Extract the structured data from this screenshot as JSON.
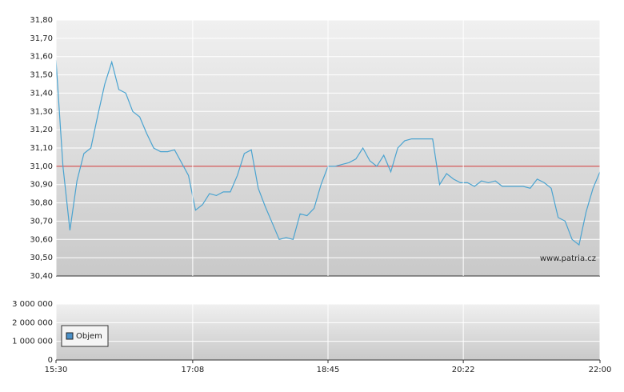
{
  "chart_data": [
    {
      "type": "line",
      "x": [
        "15:30",
        "15:35",
        "15:40",
        "15:45",
        "15:50",
        "15:55",
        "16:00",
        "16:05",
        "16:10",
        "16:15",
        "16:20",
        "16:25",
        "16:30",
        "16:35",
        "16:40",
        "16:45",
        "16:50",
        "16:55",
        "17:00",
        "17:05",
        "17:10",
        "17:15",
        "17:20",
        "17:25",
        "17:30",
        "17:35",
        "17:40",
        "17:45",
        "17:50",
        "17:55",
        "18:00",
        "18:05",
        "18:10",
        "18:15",
        "18:20",
        "18:25",
        "18:30",
        "18:35",
        "18:40",
        "18:45",
        "18:50",
        "18:55",
        "19:00",
        "19:05",
        "19:10",
        "19:15",
        "19:20",
        "19:25",
        "19:30",
        "19:35",
        "19:40",
        "19:45",
        "19:50",
        "19:55",
        "20:00",
        "20:05",
        "20:10",
        "20:15",
        "20:20",
        "20:25",
        "20:30",
        "20:35",
        "20:40",
        "20:45",
        "20:50",
        "20:55",
        "21:00",
        "21:05",
        "21:10",
        "21:15",
        "21:20",
        "21:25",
        "21:30",
        "21:35",
        "21:40",
        "21:45",
        "21:50",
        "21:55",
        "22:00"
      ],
      "series": [
        {
          "color": "#4aa3d0",
          "values": [
            31.58,
            31.0,
            30.65,
            30.92,
            31.07,
            31.1,
            31.28,
            31.45,
            31.57,
            31.42,
            31.4,
            31.3,
            31.27,
            31.18,
            31.1,
            31.08,
            31.08,
            31.09,
            31.02,
            30.95,
            30.76,
            30.79,
            30.85,
            30.84,
            30.86,
            30.86,
            30.95,
            31.07,
            31.09,
            30.88,
            30.78,
            30.69,
            30.6,
            30.61,
            30.6,
            30.74,
            30.73,
            30.77,
            30.9,
            31.0,
            31.0,
            31.01,
            31.02,
            31.04,
            31.1,
            31.03,
            31.0,
            31.06,
            30.97,
            31.1,
            31.14,
            31.15,
            31.15,
            31.15,
            31.15,
            30.9,
            30.96,
            30.93,
            30.91,
            30.91,
            30.89,
            30.92,
            30.91,
            30.92,
            30.89,
            30.89,
            30.89,
            30.89,
            30.88,
            30.93,
            30.91,
            30.88,
            30.72,
            30.7,
            30.6,
            30.57,
            30.75,
            30.88,
            30.97
          ]
        }
      ],
      "reference": 31.0,
      "reference_color": "#cc3333",
      "xlim": [
        "15:30",
        "22:00"
      ],
      "ylim": [
        30.4,
        31.8
      ],
      "yticks": [
        {
          "value": 30.4,
          "label": "30,40"
        },
        {
          "value": 30.5,
          "label": "30,50"
        },
        {
          "value": 30.6,
          "label": "30,60"
        },
        {
          "value": 30.7,
          "label": "30,70"
        },
        {
          "value": 30.8,
          "label": "30,80"
        },
        {
          "value": 30.9,
          "label": "30,90"
        },
        {
          "value": 31.0,
          "label": "31,00"
        },
        {
          "value": 31.1,
          "label": "31,10"
        },
        {
          "value": 31.2,
          "label": "31,20"
        },
        {
          "value": 31.3,
          "label": "31,30"
        },
        {
          "value": 31.4,
          "label": "31,40"
        },
        {
          "value": 31.5,
          "label": "31,50"
        },
        {
          "value": 31.6,
          "label": "31,60"
        },
        {
          "value": 31.7,
          "label": "31,70"
        },
        {
          "value": 31.8,
          "label": "31,80"
        }
      ],
      "grid": true,
      "annotation": "www.patria.cz"
    },
    {
      "type": "bar",
      "x": [],
      "series": [
        {
          "name": "Objem",
          "color": "#4a90c8",
          "values": []
        }
      ],
      "xlim": [
        "15:30",
        "22:00"
      ],
      "xticks": [
        "15:30",
        "17:08",
        "18:45",
        "20:22",
        "22:00"
      ],
      "ylim": [
        0,
        3000000
      ],
      "yticks": [
        {
          "value": 0,
          "label": "0"
        },
        {
          "value": 1000000,
          "label": "1 000 000"
        },
        {
          "value": 2000000,
          "label": "2 000 000"
        },
        {
          "value": 3000000,
          "label": "3 000 000"
        }
      ],
      "grid": true,
      "legend": "top-left"
    }
  ]
}
